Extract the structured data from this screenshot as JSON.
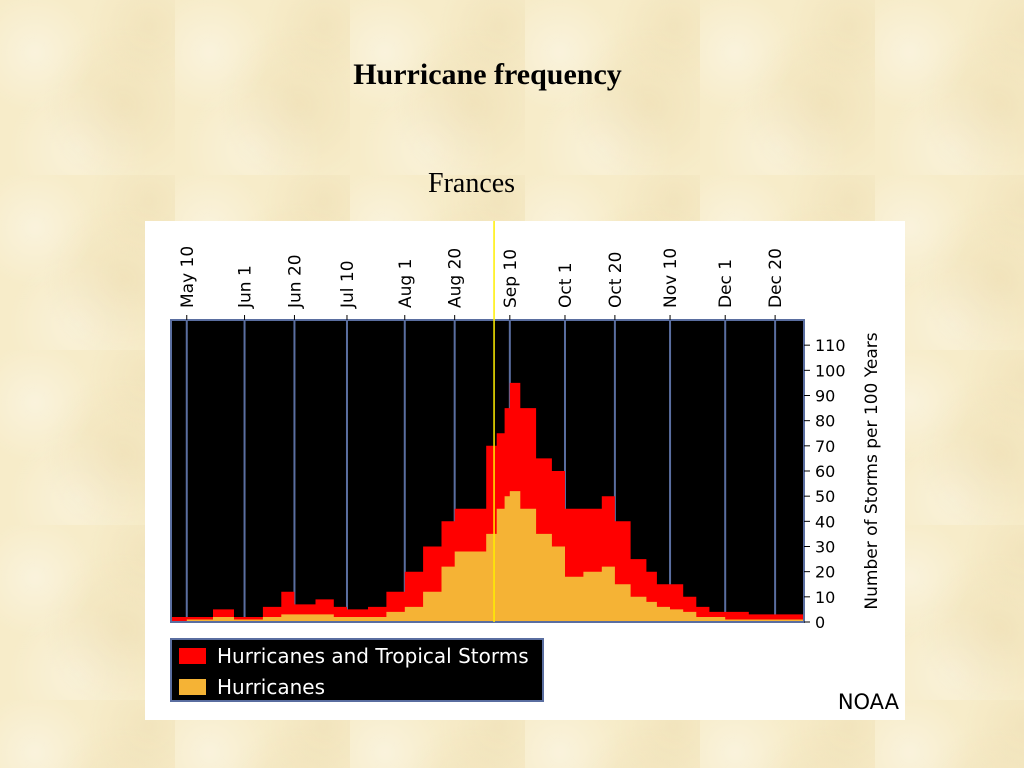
{
  "slide": {
    "title": "Hurricane frequency",
    "annotation": "Frances"
  },
  "colors": {
    "background": "#f7ecc9",
    "plot_background": "#000000",
    "hurricanes_and_tropical_storms": "#ff0000",
    "hurricanes": "#f5b335",
    "marker": "#ffee00",
    "gridline": "#5a6ea0"
  },
  "chart_data": {
    "type": "area",
    "title": "",
    "xlabel": "",
    "ylabel": "Number of Storms per 100 Years",
    "ylim": [
      0,
      120
    ],
    "yticks": [
      0,
      10,
      20,
      30,
      40,
      50,
      60,
      70,
      80,
      90,
      100,
      110
    ],
    "x_range_days": [
      "May 4",
      "Dec 31"
    ],
    "x_tick_labels": [
      "May 10",
      "Jun 1",
      "Jun 20",
      "Jul 10",
      "Aug 1",
      "Aug 20",
      "Sep 10",
      "Oct 1",
      "Oct 20",
      "Nov 10",
      "Dec 1",
      "Dec 20"
    ],
    "legend_position": "bottom-left",
    "source_label": "NOAA",
    "marker_line": {
      "label": "Frances",
      "date": "Sep 4"
    },
    "x": [
      "May 4",
      "May 10",
      "May 20",
      "May 28",
      "Jun 1",
      "Jun 8",
      "Jun 15",
      "Jun 20",
      "Jun 28",
      "Jul 5",
      "Jul 10",
      "Jul 18",
      "Jul 25",
      "Aug 1",
      "Aug 8",
      "Aug 15",
      "Aug 20",
      "Aug 26",
      "Sep 1",
      "Sep 5",
      "Sep 8",
      "Sep 10",
      "Sep 14",
      "Sep 20",
      "Sep 26",
      "Oct 1",
      "Oct 8",
      "Oct 15",
      "Oct 20",
      "Oct 26",
      "Nov 1",
      "Nov 5",
      "Nov 10",
      "Nov 15",
      "Nov 20",
      "Nov 25",
      "Dec 1",
      "Dec 10",
      "Dec 20",
      "Dec 31"
    ],
    "series": [
      {
        "name": "Hurricanes and Tropical Storms",
        "values": [
          2,
          2,
          5,
          2,
          2,
          6,
          12,
          7,
          9,
          6,
          5,
          6,
          12,
          20,
          30,
          40,
          45,
          45,
          70,
          75,
          85,
          95,
          85,
          65,
          60,
          45,
          45,
          50,
          40,
          25,
          20,
          15,
          15,
          10,
          6,
          4,
          4,
          3,
          3,
          2
        ]
      },
      {
        "name": "Hurricanes",
        "values": [
          0,
          1,
          2,
          1,
          1,
          2,
          3,
          3,
          3,
          2,
          2,
          2,
          4,
          6,
          12,
          22,
          28,
          28,
          35,
          45,
          50,
          52,
          45,
          35,
          30,
          18,
          20,
          22,
          15,
          10,
          8,
          6,
          5,
          4,
          2,
          2,
          1,
          1,
          1,
          0
        ]
      }
    ]
  }
}
